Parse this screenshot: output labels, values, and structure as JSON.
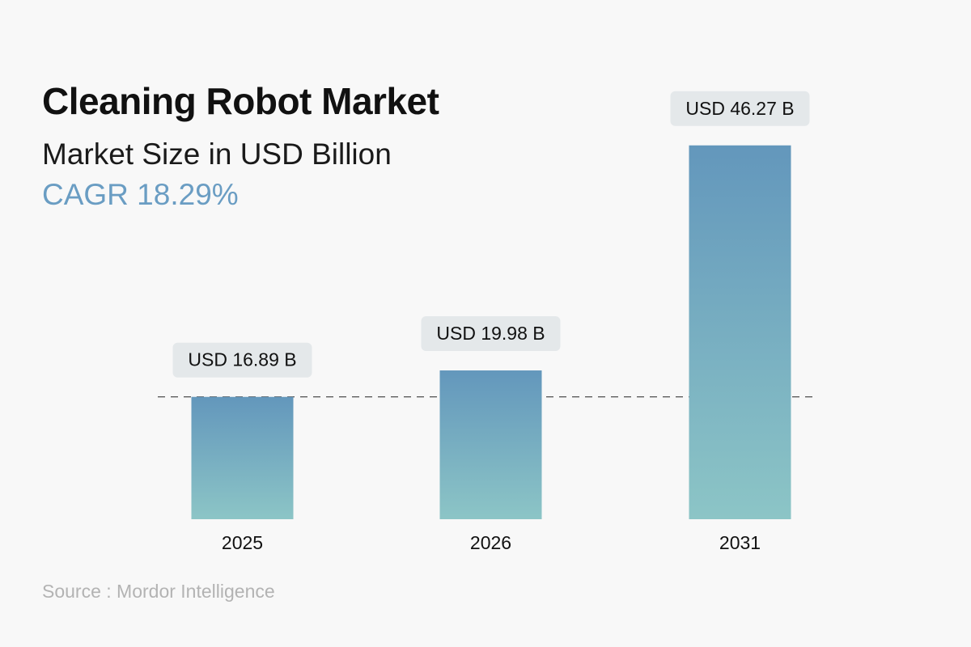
{
  "header": {
    "title": "Cleaning Robot Market",
    "subtitle": "Market Size in USD Billion",
    "cagr": "CAGR 18.29%"
  },
  "source": "Source : Mordor Intelligence",
  "colors": {
    "bar_top": "#6397bc",
    "bar_bottom": "#8cc5c6",
    "label_bg": "#e4e8ea",
    "cagr": "#6a9dc3"
  },
  "chart_data": {
    "type": "bar",
    "title": "Cleaning Robot Market",
    "subtitle": "Market Size in USD Billion",
    "categories": [
      "2025",
      "2026",
      "2031"
    ],
    "values": [
      16.89,
      19.98,
      46.27
    ],
    "data_labels": [
      "USD 16.89 B",
      "USD 19.98 B",
      "USD 46.27 B"
    ],
    "xlabel": "",
    "ylabel": "",
    "ylim": [
      2.6,
      50
    ],
    "grid": false,
    "reference_line": {
      "value": 16.89,
      "style": "dashed"
    }
  }
}
